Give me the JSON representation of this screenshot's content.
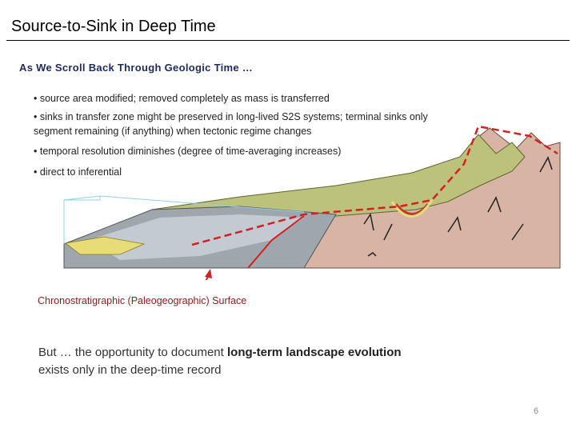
{
  "header": {
    "title": "Source-to-Sink in Deep Time",
    "subtitle": "As We Scroll Back Through Geologic Time …"
  },
  "bullets": [
    "• source area modified; removed completely as mass is transferred",
    "• sinks in transfer zone might be preserved in long-lived S2S systems; terminal sinks only segment remaining (if anything) when tectonic regime changes",
    "• temporal resolution diminishes (degree of time-averaging increases)",
    "• direct to inferential"
  ],
  "figure": {
    "caption": "Chronostratigraphic (Paleogeographic) Surface"
  },
  "conclusion": {
    "parts": [
      {
        "text": "But … the opportunity to document ",
        "bold": false
      },
      {
        "text": "long-term landscape evolution",
        "bold": true
      },
      {
        "text": " exists only in the deep-time record",
        "bold": false
      }
    ]
  },
  "page_number": "6"
}
